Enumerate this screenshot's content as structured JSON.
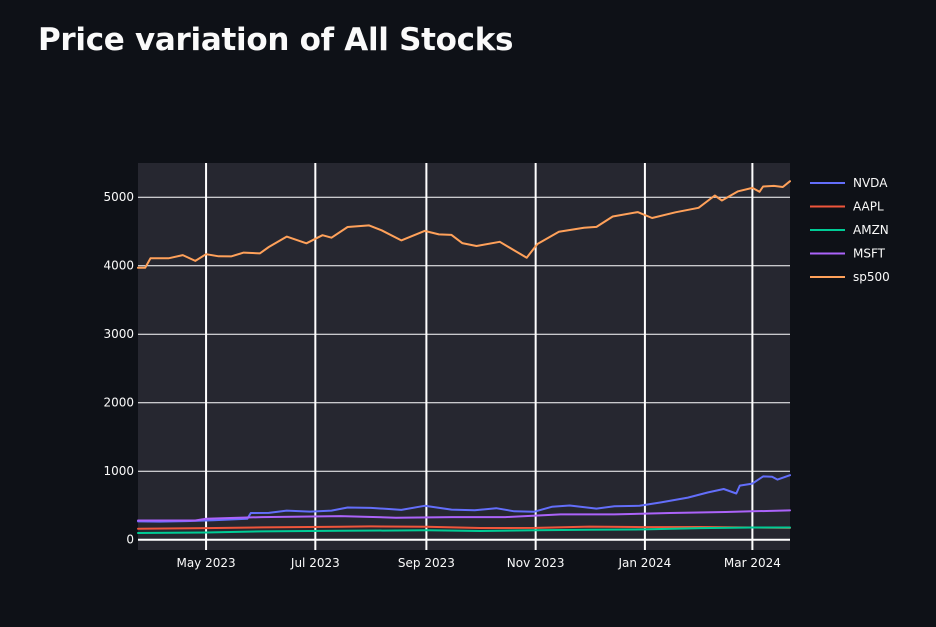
{
  "page": {
    "title": "Price variation of All Stocks"
  },
  "chart_data": {
    "type": "line",
    "title": "",
    "xlabel": "",
    "ylabel": "",
    "xlim": [
      "2023-03-24",
      "2024-03-22"
    ],
    "ylim": [
      -150,
      5500
    ],
    "y_ticks": [
      0,
      1000,
      2000,
      3000,
      4000,
      5000
    ],
    "x_ticks": [
      {
        "date": "2023-05-01",
        "label": "May 2023"
      },
      {
        "date": "2023-07-01",
        "label": "Jul 2023"
      },
      {
        "date": "2023-09-01",
        "label": "Sep 2023"
      },
      {
        "date": "2023-11-01",
        "label": "Nov 2023"
      },
      {
        "date": "2024-01-01",
        "label": "Jan 2024"
      },
      {
        "date": "2024-03-01",
        "label": "Mar 2024"
      }
    ],
    "grid": true,
    "legend_position": "right",
    "plot_background": "#262730",
    "grid_color": "#ffffff",
    "series": [
      {
        "name": "NVDA",
        "color": "#636efa",
        "points": [
          [
            "2023-03-24",
            268
          ],
          [
            "2023-04-05",
            265
          ],
          [
            "2023-04-20",
            272
          ],
          [
            "2023-05-05",
            285
          ],
          [
            "2023-05-24",
            305
          ],
          [
            "2023-05-26",
            390
          ],
          [
            "2023-06-05",
            392
          ],
          [
            "2023-06-15",
            425
          ],
          [
            "2023-06-28",
            410
          ],
          [
            "2023-07-10",
            425
          ],
          [
            "2023-07-19",
            470
          ],
          [
            "2023-08-01",
            465
          ],
          [
            "2023-08-10",
            450
          ],
          [
            "2023-08-18",
            435
          ],
          [
            "2023-08-31",
            495
          ],
          [
            "2023-09-15",
            440
          ],
          [
            "2023-09-28",
            430
          ],
          [
            "2023-10-10",
            460
          ],
          [
            "2023-10-20",
            415
          ],
          [
            "2023-10-31",
            408
          ],
          [
            "2023-11-10",
            480
          ],
          [
            "2023-11-20",
            500
          ],
          [
            "2023-12-05",
            455
          ],
          [
            "2023-12-15",
            490
          ],
          [
            "2023-12-29",
            495
          ],
          [
            "2024-01-10",
            545
          ],
          [
            "2024-01-25",
            615
          ],
          [
            "2024-02-05",
            690
          ],
          [
            "2024-02-14",
            740
          ],
          [
            "2024-02-21",
            675
          ],
          [
            "2024-02-23",
            790
          ],
          [
            "2024-03-01",
            820
          ],
          [
            "2024-03-07",
            925
          ],
          [
            "2024-03-12",
            920
          ],
          [
            "2024-03-15",
            878
          ],
          [
            "2024-03-22",
            942
          ]
        ]
      },
      {
        "name": "AAPL",
        "color": "#ef553b",
        "points": [
          [
            "2023-03-24",
            160
          ],
          [
            "2023-05-01",
            169
          ],
          [
            "2023-06-01",
            180
          ],
          [
            "2023-07-15",
            190
          ],
          [
            "2023-08-01",
            195
          ],
          [
            "2023-09-01",
            189
          ],
          [
            "2023-10-01",
            171
          ],
          [
            "2023-11-01",
            173
          ],
          [
            "2023-12-01",
            191
          ],
          [
            "2024-01-01",
            185
          ],
          [
            "2024-02-01",
            186
          ],
          [
            "2024-03-01",
            179
          ],
          [
            "2024-03-22",
            172
          ]
        ]
      },
      {
        "name": "AMZN",
        "color": "#00cc96",
        "points": [
          [
            "2023-03-24",
            98
          ],
          [
            "2023-05-01",
            105
          ],
          [
            "2023-06-01",
            122
          ],
          [
            "2023-07-15",
            130
          ],
          [
            "2023-09-01",
            138
          ],
          [
            "2023-10-01",
            127
          ],
          [
            "2023-11-01",
            137
          ],
          [
            "2023-12-01",
            147
          ],
          [
            "2024-01-01",
            151
          ],
          [
            "2024-02-01",
            170
          ],
          [
            "2024-03-01",
            178
          ],
          [
            "2024-03-22",
            178
          ]
        ]
      },
      {
        "name": "MSFT",
        "color": "#ab63fa",
        "points": [
          [
            "2023-03-24",
            280
          ],
          [
            "2023-04-25",
            280
          ],
          [
            "2023-05-01",
            306
          ],
          [
            "2023-06-01",
            330
          ],
          [
            "2023-07-15",
            345
          ],
          [
            "2023-08-15",
            322
          ],
          [
            "2023-09-15",
            330
          ],
          [
            "2023-10-15",
            330
          ],
          [
            "2023-11-15",
            370
          ],
          [
            "2023-12-15",
            370
          ],
          [
            "2024-01-15",
            390
          ],
          [
            "2024-02-15",
            405
          ],
          [
            "2024-03-01",
            415
          ],
          [
            "2024-03-22",
            428
          ]
        ]
      },
      {
        "name": "sp500",
        "color": "#ffa15a",
        "points": [
          [
            "2023-03-24",
            3970
          ],
          [
            "2023-03-28",
            3971
          ],
          [
            "2023-03-31",
            4109
          ],
          [
            "2023-04-10",
            4109
          ],
          [
            "2023-04-18",
            4155
          ],
          [
            "2023-04-25",
            4071
          ],
          [
            "2023-05-01",
            4168
          ],
          [
            "2023-05-08",
            4138
          ],
          [
            "2023-05-15",
            4136
          ],
          [
            "2023-05-22",
            4192
          ],
          [
            "2023-05-31",
            4180
          ],
          [
            "2023-06-05",
            4273
          ],
          [
            "2023-06-15",
            4425
          ],
          [
            "2023-06-26",
            4328
          ],
          [
            "2023-07-05",
            4446
          ],
          [
            "2023-07-10",
            4409
          ],
          [
            "2023-07-19",
            4565
          ],
          [
            "2023-07-31",
            4589
          ],
          [
            "2023-08-07",
            4518
          ],
          [
            "2023-08-18",
            4370
          ],
          [
            "2023-08-31",
            4508
          ],
          [
            "2023-09-08",
            4457
          ],
          [
            "2023-09-15",
            4450
          ],
          [
            "2023-09-21",
            4330
          ],
          [
            "2023-09-29",
            4288
          ],
          [
            "2023-10-12",
            4349
          ],
          [
            "2023-10-20",
            4224
          ],
          [
            "2023-10-27",
            4117
          ],
          [
            "2023-11-02",
            4317
          ],
          [
            "2023-11-14",
            4495
          ],
          [
            "2023-11-28",
            4554
          ],
          [
            "2023-12-05",
            4567
          ],
          [
            "2023-12-14",
            4719
          ],
          [
            "2023-12-28",
            4783
          ],
          [
            "2024-01-05",
            4697
          ],
          [
            "2024-01-18",
            4780
          ],
          [
            "2024-01-31",
            4846
          ],
          [
            "2024-02-09",
            5026
          ],
          [
            "2024-02-13",
            4953
          ],
          [
            "2024-02-22",
            5087
          ],
          [
            "2024-03-01",
            5137
          ],
          [
            "2024-03-05",
            5079
          ],
          [
            "2024-03-07",
            5157
          ],
          [
            "2024-03-13",
            5165
          ],
          [
            "2024-03-18",
            5149
          ],
          [
            "2024-03-22",
            5234
          ]
        ]
      }
    ]
  }
}
